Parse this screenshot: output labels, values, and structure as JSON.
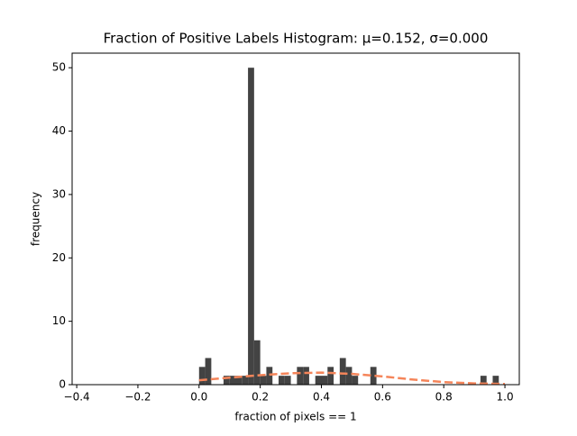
{
  "chart_data": {
    "type": "histogram",
    "title": "Fraction of Positive Labels Histogram: μ=0.152, σ=0.000",
    "xlabel": "fraction of pixels == 1",
    "ylabel": "frequency",
    "bins": [
      0,
      0.02,
      0.04,
      0.06,
      0.08,
      0.1,
      0.12,
      0.14,
      0.16,
      0.18,
      0.2,
      0.22,
      0.24,
      0.26,
      0.28,
      0.3,
      0.32,
      0.34,
      0.36,
      0.38,
      0.4,
      0.42,
      0.44,
      0.46,
      0.48,
      0.5,
      0.52,
      0.54,
      0.56,
      0.58,
      0.6,
      0.62,
      0.64,
      0.66,
      0.68,
      0.7,
      0.72,
      0.74,
      0.76,
      0.78,
      0.8,
      0.82,
      0.84,
      0.86,
      0.88,
      0.9,
      0.92,
      0.94,
      0.96,
      0.98,
      1.0
    ],
    "counts": [
      2.8,
      4.2,
      0,
      0,
      1.4,
      1.4,
      1.4,
      1.4,
      50,
      7,
      1.4,
      2.8,
      0,
      1.4,
      1.4,
      0,
      2.8,
      2.8,
      0,
      1.4,
      1.4,
      2.8,
      0,
      4.2,
      2.8,
      1.4,
      0,
      0,
      2.8,
      0,
      0,
      0,
      0,
      0,
      0,
      0,
      0,
      0,
      0,
      0,
      0,
      0,
      0,
      0,
      0,
      0,
      1.4,
      0,
      1.4,
      0
    ],
    "color": "#3f3f3f",
    "curve": {
      "x": [
        0,
        0.1,
        0.2,
        0.3,
        0.4,
        0.5,
        0.6,
        0.7,
        0.8,
        0.9,
        1.0
      ],
      "values": [
        0.7,
        1.1,
        1.5,
        1.8,
        1.9,
        1.7,
        1.3,
        0.8,
        0.4,
        0.2,
        0.1
      ],
      "color": "#f5855a"
    },
    "xlim": [
      -0.415,
      1.047
    ],
    "ylim": [
      0,
      52.3
    ],
    "xticks": [
      {
        "value": -0.4,
        "label": "−0.4"
      },
      {
        "value": -0.2,
        "label": "−0.2"
      },
      {
        "value": 0,
        "label": "0.0"
      },
      0.2,
      0.4,
      0.6,
      0.8,
      {
        "value": 1,
        "label": "1.0"
      }
    ],
    "yticks": [
      0,
      10,
      20,
      30,
      40,
      50
    ]
  }
}
